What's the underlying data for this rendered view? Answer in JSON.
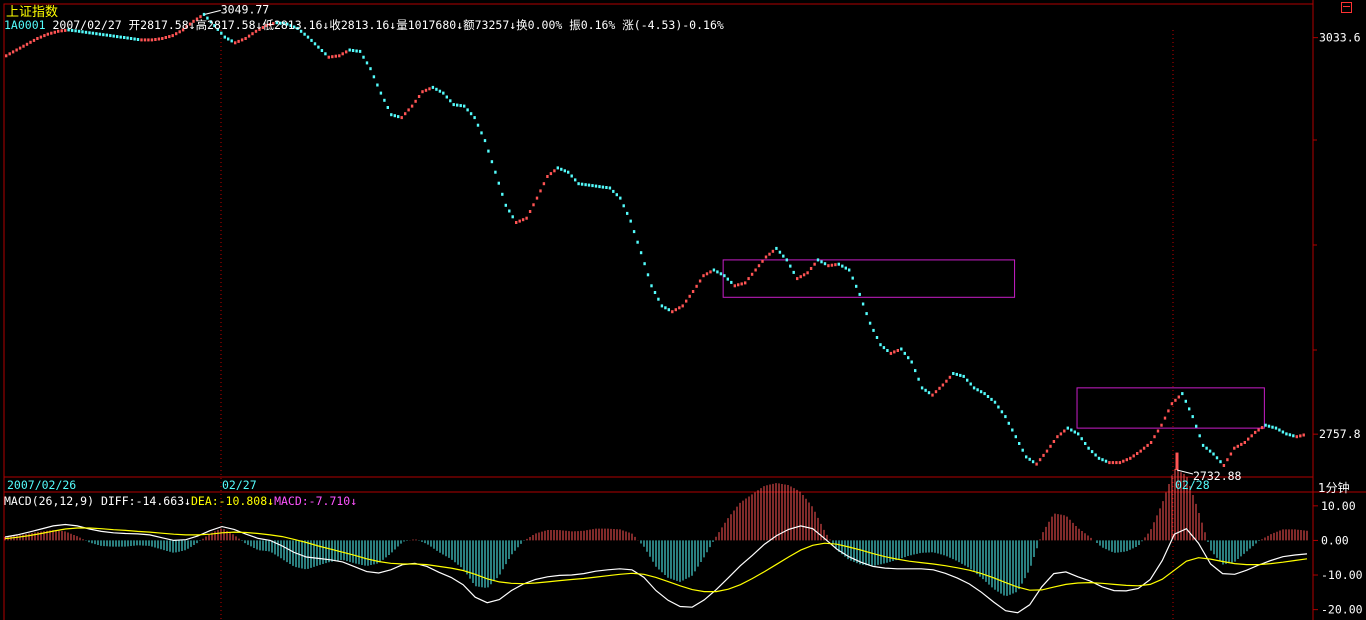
{
  "title": "上证指数",
  "info": {
    "code": "1A0001",
    "date": "2007/02/27",
    "open": "开2817.58↓",
    "high": "高2817.58↓",
    "low": "低2813.16↓",
    "close": "收2813.16↓",
    "volume": "量1017680↓",
    "amount": "额73257↓",
    "turnover": "换0.00%",
    "amplitude": "振0.16%",
    "change": "涨(-4.53)-0.16%"
  },
  "macd_info": {
    "label": "MACD(26,12,9)",
    "diff": "DIFF:-14.663↓",
    "dea": "DEA:-10.808↓",
    "macd": "MACD:-7.710↓"
  },
  "timeframe": "1分钟",
  "colors": {
    "up": "#ff5454",
    "down": "#54fcfc",
    "frame": "#b00000",
    "box": "#c81ec8",
    "diff": "#ffffff",
    "dea": "#ffff00"
  },
  "chart_data": [
    {
      "type": "line",
      "title": "上证指数",
      "x_labels": [
        "2007/02/26",
        "02/27",
        "02/28"
      ],
      "y_ticks": [
        "3033.6",
        "2757.8"
      ],
      "annotations": [
        {
          "label": "3049.77",
          "value": 3049.77
        },
        {
          "label": "2732.88",
          "value": 2732.88
        }
      ],
      "ylim": [
        2728,
        3057
      ],
      "series": [
        {
          "values": [
            3021,
            3025,
            3029,
            3033,
            3036,
            3038,
            3039,
            3038,
            3037,
            3036,
            3035,
            3034,
            3033,
            3032,
            3032,
            3033,
            3035,
            3039,
            3045,
            3049.77,
            3042,
            3034,
            3030,
            3033,
            3038,
            3042,
            3044,
            3043,
            3040,
            3034,
            3027,
            3020,
            3021,
            3025,
            3024,
            3012,
            2995,
            2980,
            2978,
            2986,
            2996,
            2999,
            2995,
            2987,
            2986,
            2978,
            2962,
            2940,
            2917,
            2905,
            2908,
            2922,
            2937,
            2943,
            2940,
            2932,
            2931,
            2930,
            2929,
            2922,
            2906,
            2884,
            2861,
            2847,
            2843,
            2847,
            2857,
            2868,
            2872,
            2868,
            2861,
            2863,
            2872,
            2881,
            2887,
            2879,
            2866,
            2870,
            2879,
            2875,
            2876,
            2872,
            2855,
            2835,
            2820,
            2814,
            2817,
            2808,
            2790,
            2785,
            2792,
            2800,
            2798,
            2790,
            2786,
            2780,
            2770,
            2756,
            2742,
            2737,
            2746,
            2756,
            2762,
            2758,
            2748,
            2741,
            2738,
            2738,
            2741,
            2746,
            2752,
            2764,
            2779,
            2786,
            2770,
            2750,
            2744,
            2736,
            2748,
            2752,
            2759,
            2764,
            2762,
            2758,
            2756,
            2757.8
          ]
        }
      ]
    },
    {
      "type": "line",
      "title": "MACD(26,12,9)",
      "y_ticks": [
        "10.00",
        "0.00",
        "-10.00",
        "-20.00"
      ],
      "ylim": [
        -23,
        14
      ],
      "series": [
        {
          "name": "DIFF",
          "values": [
            1,
            1.6,
            2.4,
            3.3,
            4.2,
            4.6,
            4.2,
            3.3,
            2.6,
            2.2,
            2.0,
            1.9,
            1.6,
            0.8,
            0,
            0.2,
            1.3,
            2.8,
            4.0,
            3.2,
            1.8,
            0.6,
            0,
            -1.6,
            -3.5,
            -4.8,
            -5.2,
            -5.6,
            -6.2,
            -7.6,
            -9,
            -9.4,
            -8.5,
            -7,
            -6.6,
            -7.5,
            -9.2,
            -10.7,
            -12.8,
            -16.4,
            -18,
            -17.1,
            -14.5,
            -12.6,
            -11.3,
            -10.5,
            -10.1,
            -10,
            -9.6,
            -8.9,
            -8.5,
            -8.2,
            -8.5,
            -10.7,
            -14.5,
            -17.3,
            -19.1,
            -19.3,
            -17.2,
            -14.2,
            -10.8,
            -7.3,
            -4.3,
            -1.1,
            1.4,
            3.2,
            4.2,
            3.4,
            0.5,
            -2.5,
            -4.7,
            -6.3,
            -7.5,
            -8,
            -8.2,
            -8.2,
            -8.2,
            -8.5,
            -9.5,
            -10.9,
            -12.6,
            -15,
            -17.8,
            -20.3,
            -20.9,
            -18.6,
            -13.4,
            -9.6,
            -9.1,
            -10.5,
            -11.7,
            -13.4,
            -14.5,
            -14.6,
            -13.9,
            -11.3,
            -5.8,
            1.8,
            3.4,
            -0.8,
            -6.8,
            -9.6,
            -9.8,
            -8.6,
            -7.1,
            -5.8,
            -4.7,
            -4.2,
            -3.9
          ]
        },
        {
          "name": "DEA",
          "values": [
            0.5,
            0.9,
            1.4,
            2,
            2.7,
            3.3,
            3.6,
            3.6,
            3.4,
            3.1,
            2.9,
            2.6,
            2.4,
            2.1,
            1.8,
            1.6,
            1.6,
            1.8,
            2.2,
            2.4,
            2.3,
            2,
            1.6,
            1.1,
            0.3,
            -0.6,
            -1.6,
            -2.5,
            -3.4,
            -4.3,
            -5.3,
            -6.1,
            -6.6,
            -6.8,
            -6.8,
            -7,
            -7.5,
            -8,
            -8.7,
            -9.8,
            -11.1,
            -12,
            -12.4,
            -12.5,
            -12.3,
            -12,
            -11.6,
            -11.3,
            -11,
            -10.6,
            -10.2,
            -9.8,
            -9.5,
            -9.8,
            -10.7,
            -11.9,
            -13.1,
            -14.2,
            -14.8,
            -14.8,
            -14.1,
            -12.8,
            -11,
            -9,
            -6.9,
            -4.8,
            -2.8,
            -1.4,
            -0.8,
            -1.1,
            -1.9,
            -2.8,
            -3.8,
            -4.7,
            -5.4,
            -6,
            -6.4,
            -6.8,
            -7.3,
            -7.9,
            -8.6,
            -9.6,
            -10.8,
            -12.2,
            -13.5,
            -14.4,
            -14.3,
            -13.5,
            -12.7,
            -12.3,
            -12.2,
            -12.4,
            -12.7,
            -13,
            -13.1,
            -12.7,
            -11.2,
            -8.6,
            -6,
            -5,
            -5.4,
            -6.1,
            -6.7,
            -7,
            -7,
            -6.7,
            -6.3,
            -5.8,
            -5.3
          ]
        }
      ]
    }
  ]
}
